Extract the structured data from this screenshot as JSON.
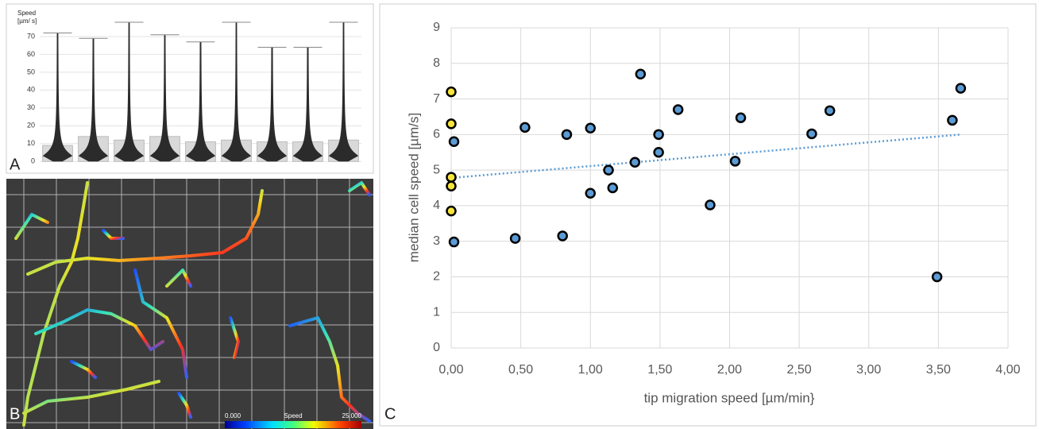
{
  "chart_data": [
    {
      "type": "violin",
      "panel_label": "A",
      "ylabel": [
        "Speed",
        "[µm/ s]"
      ],
      "categories": [
        null,
        null,
        null,
        null,
        null,
        null,
        null,
        null,
        null
      ],
      "values": [
        9,
        14,
        12,
        14,
        11,
        12,
        11,
        11,
        12
      ],
      "max_values": [
        72,
        69,
        78,
        71,
        67,
        78,
        64,
        64,
        78
      ],
      "color": "#2b2b2b",
      "box_color": "#d9d9d9",
      "ylim": [
        -3,
        86
      ],
      "yticks": [
        0,
        10,
        20,
        30,
        40,
        50,
        60,
        70
      ],
      "grid": true
    },
    {
      "type": "scatter",
      "panel_label": "C",
      "xlabel": "tip migration speed [µm/min}",
      "ylabel": "median cell speed [µm/s]",
      "series": [
        {
          "color": "#f7e53b",
          "x": [
            0,
            0,
            0,
            0,
            0
          ],
          "values": [
            7.2,
            6.3,
            4.8,
            4.55,
            3.85
          ]
        },
        {
          "color": "#5b9bd5",
          "x": [
            0.02,
            0.02,
            0.46,
            0.53,
            0.8,
            0.83,
            1.0,
            1.0,
            1.13,
            1.16,
            1.32,
            1.36,
            1.49,
            1.49,
            1.63,
            1.86,
            2.04,
            2.08,
            2.59,
            2.72,
            3.49,
            3.6,
            3.66
          ],
          "values": [
            5.8,
            2.98,
            3.08,
            6.2,
            3.15,
            6.0,
            6.18,
            4.35,
            5.0,
            4.5,
            5.22,
            7.7,
            6.0,
            5.5,
            6.7,
            4.02,
            5.25,
            6.47,
            6.02,
            6.67,
            2.0,
            6.4,
            7.3
          ]
        }
      ],
      "trendline": {
        "color": "#5b9bd5",
        "x": [
          0,
          3.66
        ],
        "values": [
          4.78,
          6.0
        ]
      },
      "xlim": [
        0,
        4
      ],
      "ylim": [
        0,
        9
      ],
      "xticks": [
        {
          "value": 0,
          "label": "0,00"
        },
        {
          "value": 0.5,
          "label": "0,50"
        },
        {
          "value": 1,
          "label": "1,00"
        },
        {
          "value": 1.5,
          "label": "1,50"
        },
        {
          "value": 2,
          "label": "2,00"
        },
        {
          "value": 2.5,
          "label": "2,50"
        },
        {
          "value": 3,
          "label": "3,00"
        },
        {
          "value": 3.5,
          "label": "3,50"
        },
        {
          "value": 4,
          "label": "4,00"
        }
      ],
      "yticks": [
        0,
        1,
        2,
        3,
        4,
        5,
        6,
        7,
        8,
        9
      ],
      "grid": true
    }
  ],
  "image_panel": {
    "panel_label": "B",
    "colorbar": {
      "min_label": "0.000",
      "title": "Speed",
      "max_label": "25.000"
    }
  }
}
